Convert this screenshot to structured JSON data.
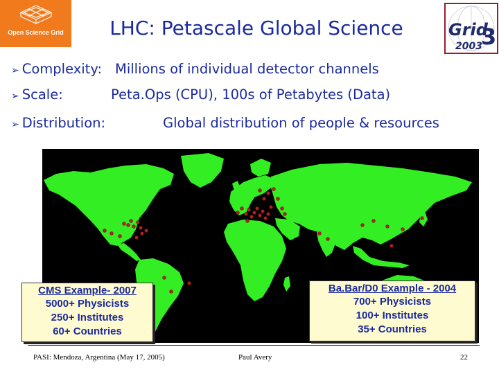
{
  "logo_left": {
    "text": "Open Science Grid"
  },
  "title": "LHC: Petascale Global Science",
  "logo_right": {
    "text_top": "Grid",
    "digit": "3",
    "year": "2003"
  },
  "bullets": [
    {
      "key": "Complexity:",
      "value": "Millions of individual detector channels"
    },
    {
      "key": "Scale:",
      "value": "Peta.Ops (CPU), 100s of Petabytes (Data)"
    },
    {
      "key": "Distribution:",
      "value": "Global distribution of people & resources"
    }
  ],
  "callouts": {
    "cms": {
      "head": "CMS Example- 2007",
      "lines": [
        "5000+ Physicists",
        "250+ Institutes",
        "60+ Countries"
      ]
    },
    "babar": {
      "head": "Ba.Bar/D0 Example - 2004",
      "lines": [
        "700+ Physicists",
        "100+ Institutes",
        "35+ Countries"
      ]
    }
  },
  "footer": {
    "left": "PASI: Mendoza, Argentina (May 17, 2005)",
    "center": "Paul Avery",
    "page": "22"
  },
  "colors": {
    "title": "#1a2a9e",
    "map_background": "#000000",
    "land": "#33ee22",
    "site": "#b22222",
    "orange": "#f07a1c"
  }
}
